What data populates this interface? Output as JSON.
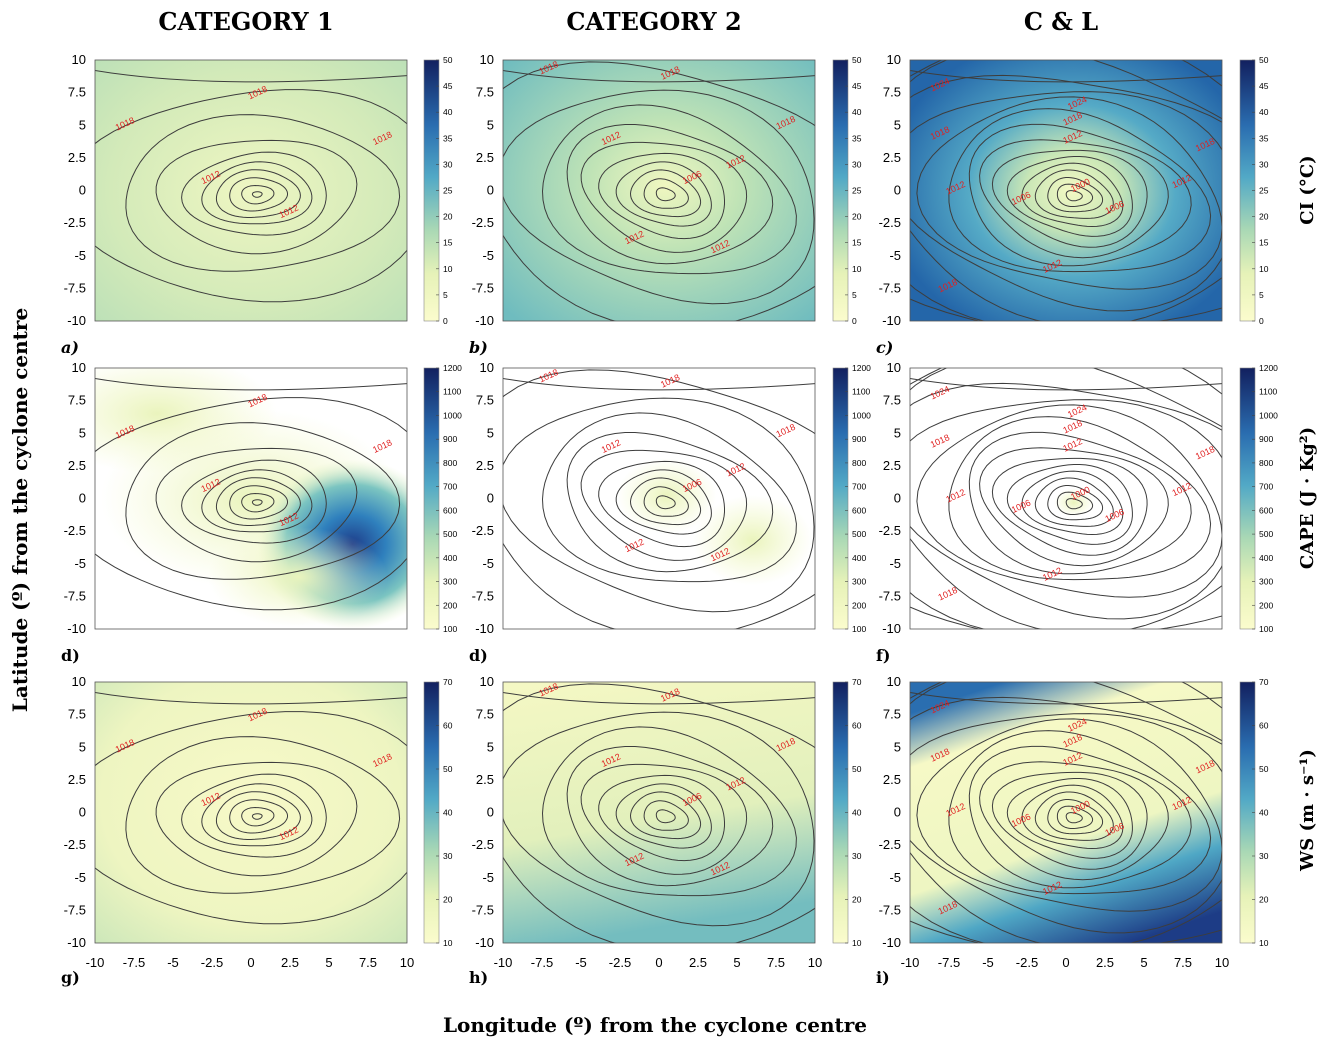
{
  "figure": {
    "xlabel": "Longitude (º) from the cyclone centre",
    "ylabel": "Latitude (º) from the cyclone centre",
    "column_titles": [
      "CATEGORY 1",
      "CATEGORY 2",
      "C & L"
    ],
    "row_labels": [
      "CI (°C)",
      "CAPE (J · Kg²)",
      "WS (m · s⁻¹)"
    ]
  },
  "colorbars": [
    {
      "ticks": [
        "50",
        "45",
        "40",
        "35",
        "30",
        "25",
        "20",
        "15",
        "10",
        "5",
        "0"
      ],
      "min": 0,
      "max": 50
    },
    {
      "ticks": [
        "1200",
        "1100",
        "1000",
        "900",
        "800",
        "700",
        "600",
        "500",
        "400",
        "300",
        "200",
        "100"
      ],
      "min": 100,
      "max": 1200
    },
    {
      "ticks": [
        "70",
        "60",
        "50",
        "40",
        "30",
        "20",
        "10"
      ],
      "min": 10,
      "max": 70
    }
  ],
  "colors": {
    "low": "#f8f9c4",
    "mid": "#a4d7b5",
    "high": "#3a94c2",
    "max": "#172c74",
    "contour": "#3d3d3d",
    "contour_label": "#e02020"
  },
  "chart_data": [
    {
      "type": "heatmap",
      "panel": "a)",
      "variable": "CI",
      "colorbar_range": [
        0,
        50
      ],
      "xlim": [
        -10,
        10
      ],
      "ylim": [
        -10,
        10
      ],
      "x_ticks": [
        "-10",
        "-7.5",
        "-5",
        "-2.5",
        "0",
        "2.5",
        "5",
        "7.5",
        "10"
      ],
      "y_ticks": [
        "10",
        "7.5",
        "5",
        "2.5",
        "0",
        "-2.5",
        "-5",
        "-7.5",
        "-10"
      ],
      "contour_labels": [
        "1018",
        "1018",
        "1018",
        "1012",
        "1012"
      ]
    },
    {
      "type": "heatmap",
      "panel": "b)",
      "variable": "CI",
      "colorbar_range": [
        0,
        50
      ],
      "xlim": [
        -10,
        10
      ],
      "ylim": [
        -10,
        10
      ],
      "x_ticks": [
        "-10",
        "-7.5",
        "-5",
        "-2.5",
        "0",
        "2.5",
        "5",
        "7.5",
        "10"
      ],
      "y_ticks": [
        "10",
        "7.5",
        "5",
        "2.5",
        "0",
        "-2.5",
        "-5",
        "-7.5",
        "-10"
      ],
      "contour_labels": [
        "1018",
        "1018",
        "1018",
        "1012",
        "1012",
        "1006",
        "1012",
        "1012"
      ]
    },
    {
      "type": "heatmap",
      "panel": "c)",
      "variable": "CI",
      "colorbar_range": [
        0,
        50
      ],
      "xlim": [
        -10,
        10
      ],
      "ylim": [
        -10,
        10
      ],
      "x_ticks": [
        "-10",
        "-7.5",
        "-5",
        "-2.5",
        "0",
        "2.5",
        "5",
        "7.5",
        "10"
      ],
      "y_ticks": [
        "10",
        "7.5",
        "5",
        "2.5",
        "0",
        "-2.5",
        "-5",
        "-7.5",
        "-10"
      ],
      "contour_labels": [
        "1024",
        "1024",
        "1018",
        "1018",
        "1012",
        "1018",
        "1012",
        "1012",
        "1006",
        "1000",
        "1006",
        "1012",
        "1018"
      ]
    },
    {
      "type": "heatmap",
      "panel": "d)",
      "variable": "CAPE",
      "colorbar_range": [
        100,
        1200
      ],
      "xlim": [
        -10,
        10
      ],
      "ylim": [
        -10,
        10
      ],
      "x_ticks": [
        "-10",
        "-7.5",
        "-5",
        "-2.5",
        "0",
        "2.5",
        "5",
        "7.5",
        "10"
      ],
      "y_ticks": [
        "10",
        "7.5",
        "5",
        "2.5",
        "0",
        "-2.5",
        "-5",
        "-7.5",
        "-10"
      ],
      "contour_labels": [
        "1018",
        "1018",
        "1018",
        "1012",
        "1012"
      ]
    },
    {
      "type": "heatmap",
      "panel": "d)",
      "variable": "CAPE",
      "colorbar_range": [
        100,
        1200
      ],
      "xlim": [
        -10,
        10
      ],
      "ylim": [
        -10,
        10
      ],
      "x_ticks": [
        "-10",
        "-7.5",
        "-5",
        "-2.5",
        "0",
        "2.5",
        "5",
        "7.5",
        "10"
      ],
      "y_ticks": [
        "10",
        "7.5",
        "5",
        "2.5",
        "0",
        "-2.5",
        "-5",
        "-7.5",
        "-10"
      ],
      "contour_labels": [
        "1018",
        "1018",
        "1018",
        "1012",
        "1012",
        "1006",
        "1012",
        "1012"
      ]
    },
    {
      "type": "heatmap",
      "panel": "f)",
      "variable": "CAPE",
      "colorbar_range": [
        100,
        1200
      ],
      "xlim": [
        -10,
        10
      ],
      "ylim": [
        -10,
        10
      ],
      "x_ticks": [
        "-10",
        "-7.5",
        "-5",
        "-2.5",
        "0",
        "2.5",
        "5",
        "7.5",
        "10"
      ],
      "y_ticks": [
        "10",
        "7.5",
        "5",
        "2.5",
        "0",
        "-2.5",
        "-5",
        "-7.5",
        "-10"
      ],
      "contour_labels": [
        "1024",
        "1024",
        "1018",
        "1018",
        "1012",
        "1018",
        "1012",
        "1012",
        "1006",
        "1000",
        "1006",
        "1012",
        "1018"
      ]
    },
    {
      "type": "heatmap",
      "panel": "g)",
      "variable": "WS",
      "colorbar_range": [
        10,
        70
      ],
      "xlim": [
        -10,
        10
      ],
      "ylim": [
        -10,
        10
      ],
      "x_ticks": [
        "-10",
        "-7.5",
        "-5",
        "-2.5",
        "0",
        "2.5",
        "5",
        "7.5",
        "10"
      ],
      "y_ticks": [
        "10",
        "7.5",
        "5",
        "2.5",
        "0",
        "-2.5",
        "-5",
        "-7.5",
        "-10"
      ],
      "contour_labels": [
        "1018",
        "1018",
        "1018",
        "1012",
        "1012"
      ]
    },
    {
      "type": "heatmap",
      "panel": "h)",
      "variable": "WS",
      "colorbar_range": [
        10,
        70
      ],
      "xlim": [
        -10,
        10
      ],
      "ylim": [
        -10,
        10
      ],
      "x_ticks": [
        "-10",
        "-7.5",
        "-5",
        "-2.5",
        "0",
        "2.5",
        "5",
        "7.5",
        "10"
      ],
      "y_ticks": [
        "10",
        "7.5",
        "5",
        "2.5",
        "0",
        "-2.5",
        "-5",
        "-7.5",
        "-10"
      ],
      "contour_labels": [
        "1018",
        "1018",
        "1018",
        "1012",
        "1012",
        "1006",
        "1012",
        "1012"
      ]
    },
    {
      "type": "heatmap",
      "panel": "i)",
      "variable": "WS",
      "colorbar_range": [
        10,
        70
      ],
      "xlim": [
        -10,
        10
      ],
      "ylim": [
        -10,
        10
      ],
      "x_ticks": [
        "-10",
        "-7.5",
        "-5",
        "-2.5",
        "0",
        "2.5",
        "5",
        "7.5",
        "10"
      ],
      "y_ticks": [
        "10",
        "7.5",
        "5",
        "2.5",
        "0",
        "-2.5",
        "-5",
        "-7.5",
        "-10"
      ],
      "contour_labels": [
        "1024",
        "1024",
        "1018",
        "1018",
        "1012",
        "1018",
        "1012",
        "1012",
        "1006",
        "1000",
        "1006",
        "1012",
        "1018"
      ]
    }
  ]
}
